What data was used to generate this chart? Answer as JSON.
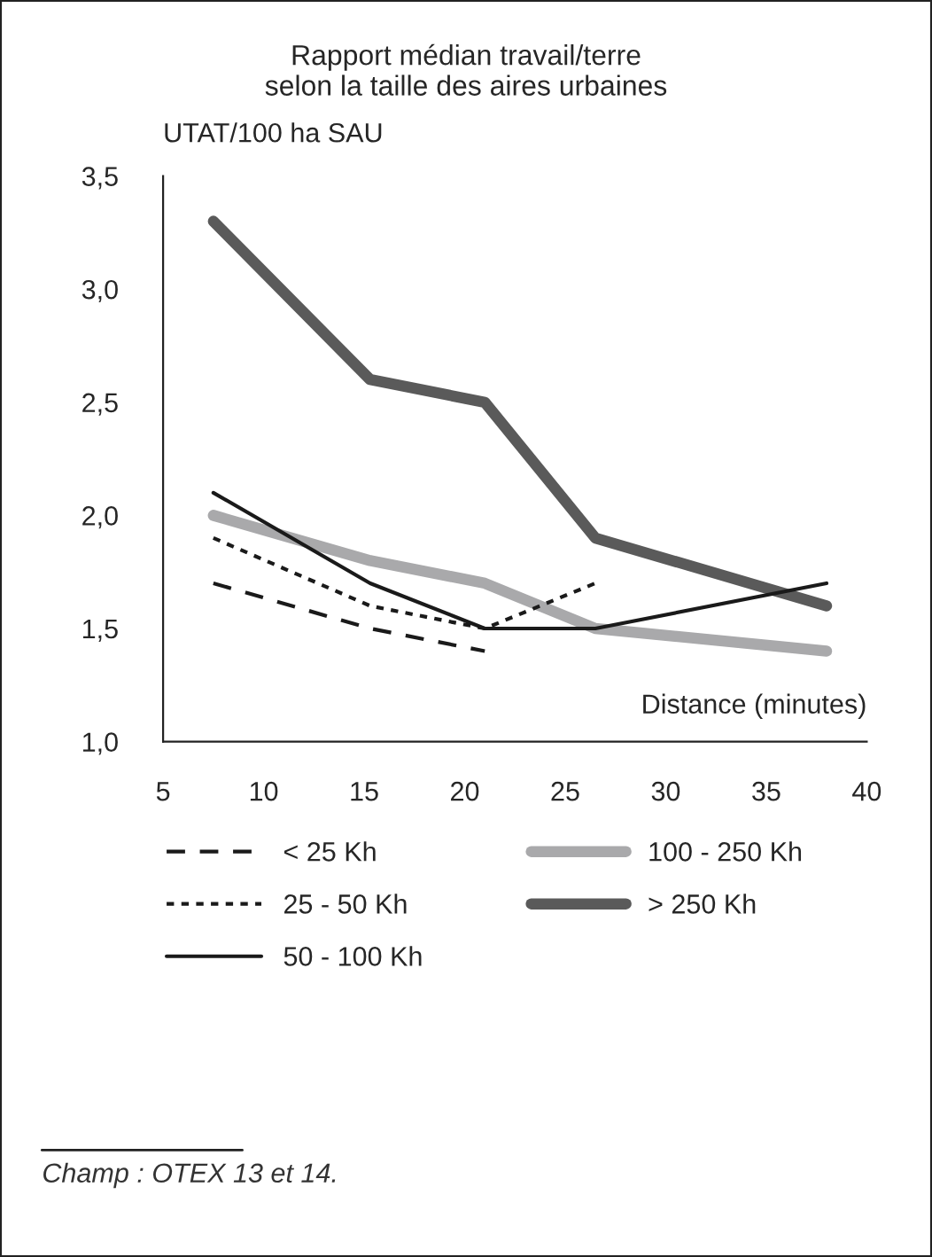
{
  "chart_data": {
    "type": "line",
    "title": "Rapport médian travail/terre\nselon la taille des aires urbaines",
    "ylabel": "UTAT/100 ha SAU",
    "xlabel": "Distance (minutes)",
    "xlim": [
      5,
      40
    ],
    "xticks": [
      5,
      10,
      15,
      20,
      25,
      30,
      35,
      40
    ],
    "ylim": [
      1.0,
      3.5
    ],
    "yticks": [
      {
        "value": 1.0,
        "label": "1,0"
      },
      {
        "value": 1.5,
        "label": "1,5"
      },
      {
        "value": 2.0,
        "label": "2,0"
      },
      {
        "value": 2.5,
        "label": "2,5"
      },
      {
        "value": 3.0,
        "label": "3,0"
      },
      {
        "value": 3.5,
        "label": "3,5"
      }
    ],
    "grid": false,
    "legend": "bottom",
    "marker": "none",
    "series": [
      {
        "name": "< 25 Kh",
        "color": "#1a1a1a",
        "line_style": "dashed",
        "x": [
          7.5,
          15.3,
          21
        ],
        "values": [
          1.7,
          1.5,
          1.4
        ]
      },
      {
        "name": "25 - 50 Kh",
        "color": "#1a1a1a",
        "line_style": "dotted",
        "x": [
          7.5,
          15.3,
          21,
          26.5
        ],
        "values": [
          1.9,
          1.6,
          1.5,
          1.7
        ]
      },
      {
        "name": "50 - 100 Kh",
        "color": "#1a1a1a",
        "line_style": "solid",
        "x": [
          7.5,
          15.3,
          21,
          26.5,
          38
        ],
        "values": [
          2.1,
          1.7,
          1.5,
          1.5,
          1.7
        ]
      },
      {
        "name": "100 - 250 Kh",
        "color": "#a9a9ab",
        "line_style": "solid",
        "x": [
          7.5,
          15.3,
          21,
          26.5,
          38
        ],
        "values": [
          2.0,
          1.8,
          1.7,
          1.5,
          1.4
        ]
      },
      {
        "name": "> 250 Kh",
        "color": "#5a5a5a",
        "line_style": "solid",
        "x": [
          7.5,
          15.3,
          21,
          26.5,
          38
        ],
        "values": [
          3.3,
          2.6,
          2.5,
          1.9,
          1.6
        ]
      }
    ],
    "annotations": [
      "Champ : OTEX 13 et 14."
    ]
  }
}
